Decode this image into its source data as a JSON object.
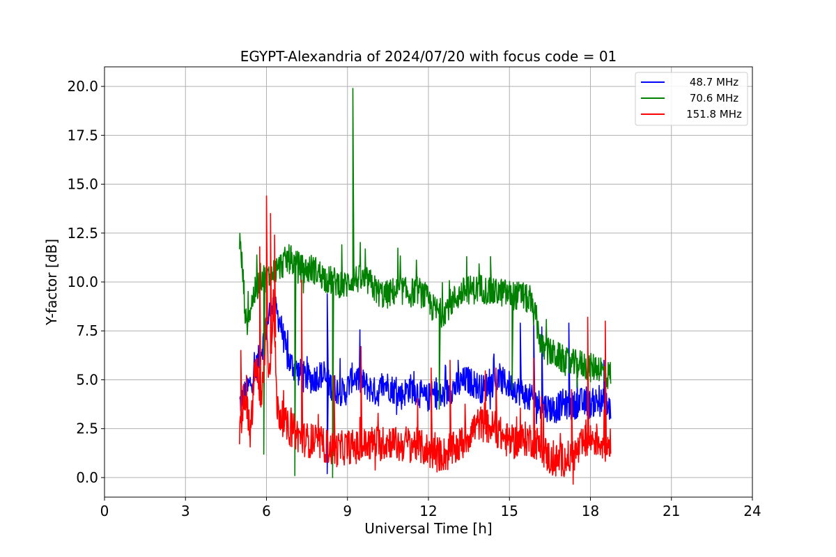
{
  "chart_data": {
    "type": "line",
    "title": "EGYPT-Alexandria of 2024/07/20 with focus code = 01",
    "xlabel": "Universal Time [h]",
    "ylabel": "Y-factor [dB]",
    "xlim": [
      0,
      24
    ],
    "ylim": [
      -1,
      21
    ],
    "xticks": [
      0,
      3,
      6,
      9,
      12,
      15,
      18,
      21,
      24
    ],
    "xtick_labels": [
      "0",
      "3",
      "6",
      "9",
      "12",
      "15",
      "18",
      "21",
      "24"
    ],
    "yticks": [
      0,
      2.5,
      5,
      7.5,
      10,
      12.5,
      15,
      17.5,
      20
    ],
    "ytick_labels": [
      "0.0",
      "2.5",
      "5.0",
      "7.5",
      "10.0",
      "12.5",
      "15.0",
      "17.5",
      "20.0"
    ],
    "grid": true,
    "legend_position": "top-right",
    "series": [
      {
        "name": "48.7 MHz",
        "color": "#0000ff",
        "x": [
          5.0,
          5.3,
          5.6,
          5.9,
          6.2,
          6.5,
          6.8,
          7.1,
          7.4,
          7.7,
          8.0,
          8.3,
          8.6,
          8.9,
          9.2,
          9.5,
          9.8,
          10.1,
          10.4,
          10.7,
          11.0,
          11.3,
          11.6,
          11.9,
          12.2,
          12.5,
          12.8,
          13.1,
          13.4,
          13.7,
          14.0,
          14.3,
          14.6,
          14.9,
          15.2,
          15.5,
          15.8,
          16.1,
          16.4,
          16.7,
          17.0,
          17.3,
          17.6,
          17.9,
          18.2,
          18.5,
          18.75
        ],
        "y": [
          3.8,
          4.5,
          5.5,
          7.0,
          9.0,
          8.0,
          6.0,
          5.5,
          5.2,
          5.0,
          5.3,
          4.8,
          4.5,
          4.3,
          5.2,
          4.9,
          4.6,
          4.3,
          4.8,
          4.5,
          4.2,
          4.6,
          4.4,
          4.0,
          4.3,
          4.1,
          4.5,
          4.7,
          5.0,
          4.8,
          4.5,
          4.8,
          5.0,
          4.8,
          4.6,
          4.3,
          4.0,
          3.8,
          3.6,
          3.5,
          3.8,
          3.6,
          3.9,
          3.7,
          3.9,
          3.8,
          3.5
        ],
        "spikes": [
          [
            8.25,
            0.2
          ],
          [
            8.25,
            9.4
          ],
          [
            9.5,
            5.8
          ],
          [
            13.1,
            6.0
          ],
          [
            15.4,
            7.9
          ],
          [
            15.9,
            7.8
          ],
          [
            16.2,
            7.7
          ],
          [
            17.2,
            7.9
          ],
          [
            18.5,
            6.0
          ]
        ]
      },
      {
        "name": "70.6 MHz",
        "color": "#008000",
        "x": [
          5.0,
          5.1,
          5.25,
          5.5,
          5.8,
          6.0,
          6.2,
          6.5,
          6.8,
          7.1,
          7.4,
          7.7,
          8.0,
          8.3,
          8.6,
          8.9,
          9.2,
          9.5,
          9.8,
          10.1,
          10.4,
          10.7,
          11.0,
          11.3,
          11.6,
          11.9,
          12.2,
          12.5,
          12.8,
          13.1,
          13.4,
          13.7,
          14.0,
          14.3,
          14.6,
          14.9,
          15.2,
          15.5,
          15.8,
          16.0,
          16.2,
          16.5,
          16.8,
          17.1,
          17.4,
          17.7,
          18.0,
          18.3,
          18.6,
          18.75
        ],
        "y": [
          12.2,
          10.8,
          7.8,
          9.2,
          10.3,
          10.2,
          10.4,
          10.8,
          11.2,
          10.9,
          10.6,
          10.7,
          10.4,
          10.1,
          10.0,
          9.8,
          10.2,
          10.1,
          10.0,
          9.5,
          9.3,
          9.5,
          9.6,
          9.4,
          9.6,
          9.2,
          8.6,
          8.4,
          8.9,
          9.3,
          9.6,
          9.6,
          9.7,
          9.4,
          9.5,
          9.4,
          9.3,
          9.3,
          8.9,
          8.0,
          6.6,
          6.4,
          6.2,
          5.9,
          5.8,
          5.8,
          5.6,
          5.7,
          5.2,
          5.3
        ],
        "spikes": [
          [
            5.9,
            1.2
          ],
          [
            7.05,
            0.1
          ],
          [
            8.45,
            0.0
          ],
          [
            9.2,
            19.9
          ],
          [
            12.4,
            3.5
          ],
          [
            14.3,
            11.3
          ],
          [
            15.1,
            4.5
          ],
          [
            17.5,
            4.6
          ]
        ]
      },
      {
        "name": "151.8 MHz",
        "color": "#ff0000",
        "x": [
          5.0,
          5.2,
          5.4,
          5.6,
          5.8,
          6.0,
          6.1,
          6.25,
          6.4,
          6.6,
          6.8,
          7.0,
          7.3,
          7.6,
          7.9,
          8.2,
          8.5,
          8.8,
          9.1,
          9.4,
          9.7,
          10.0,
          10.3,
          10.6,
          10.9,
          11.2,
          11.5,
          11.8,
          12.1,
          12.4,
          12.7,
          13.0,
          13.3,
          13.6,
          13.9,
          14.2,
          14.5,
          14.8,
          15.1,
          15.4,
          15.7,
          16.0,
          16.3,
          16.6,
          16.9,
          17.2,
          17.5,
          17.8,
          18.1,
          18.4,
          18.6,
          18.75
        ],
        "y": [
          2.2,
          4.5,
          2.0,
          6.0,
          3.5,
          8.0,
          5.0,
          9.0,
          3.5,
          3.0,
          2.5,
          2.4,
          2.0,
          1.9,
          1.8,
          1.6,
          1.4,
          1.5,
          1.6,
          1.5,
          1.7,
          1.8,
          1.7,
          1.9,
          1.6,
          1.8,
          1.7,
          1.5,
          1.3,
          1.2,
          1.2,
          1.5,
          1.8,
          2.4,
          2.8,
          2.6,
          2.5,
          2.0,
          1.8,
          1.9,
          2.0,
          1.8,
          1.3,
          0.8,
          0.9,
          1.0,
          1.3,
          1.8,
          2.0,
          1.8,
          1.6,
          2.0
        ],
        "spikes": [
          [
            5.05,
            6.5
          ],
          [
            5.75,
            11.8
          ],
          [
            6.0,
            14.4
          ],
          [
            6.15,
            13.5
          ],
          [
            6.3,
            12.4
          ],
          [
            7.3,
            10.1
          ],
          [
            8.5,
            5.2
          ],
          [
            9.5,
            6.7
          ],
          [
            12.1,
            5.6
          ],
          [
            12.8,
            6.0
          ],
          [
            14.5,
            5.6
          ],
          [
            15.9,
            6.1
          ],
          [
            17.3,
            4.5
          ],
          [
            17.9,
            8.2
          ],
          [
            18.55,
            8.0
          ]
        ]
      }
    ]
  }
}
